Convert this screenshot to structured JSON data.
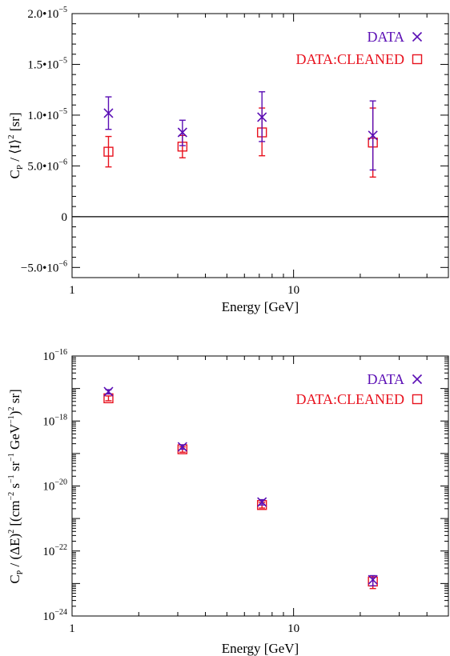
{
  "colors": {
    "data": "#5b0fb5",
    "cleaned": "#e8121e",
    "axis": "#000000"
  },
  "chart_data": [
    {
      "type": "scatter",
      "xscale": "log",
      "yscale": "linear",
      "xlim": [
        1,
        50
      ],
      "ylim": [
        -6e-06,
        2e-05
      ],
      "xticks": [
        {
          "value": 1,
          "label": "1"
        },
        {
          "value": 10,
          "label": "10"
        }
      ],
      "yticks": [
        {
          "value": 2e-05,
          "mant": "2.0•10",
          "exp": "−5"
        },
        {
          "value": 1.5e-05,
          "mant": "1.5•10",
          "exp": "−5"
        },
        {
          "value": 1e-05,
          "mant": "1.0•10",
          "exp": "−5"
        },
        {
          "value": 5e-06,
          "mant": "5.0•10",
          "exp": "−6"
        },
        {
          "value": 0,
          "mant": "0",
          "exp": ""
        },
        {
          "value": -5e-06,
          "mant": "−5.0•10",
          "exp": "−6"
        }
      ],
      "zero_line": 0,
      "xlabel": "Energy [GeV]",
      "ylabel": {
        "c": "C",
        "p": "P",
        "slash": " / ⟨I⟩",
        "two": "2",
        "unit": " [sr]"
      },
      "series": [
        {
          "name": "DATA",
          "marker": "x",
          "x": [
            1.46,
            3.15,
            7.2,
            22.8
          ],
          "y": [
            1.02e-05,
            8.3e-06,
            9.8e-06,
            8e-06
          ],
          "yerr_low": [
            8.6e-06,
            7e-06,
            7.4e-06,
            4.6e-06
          ],
          "yerr_high": [
            1.18e-05,
            9.5e-06,
            1.23e-05,
            1.14e-05
          ]
        },
        {
          "name": "DATA:CLEANED",
          "marker": "square",
          "x": [
            1.46,
            3.15,
            7.2,
            22.8
          ],
          "y": [
            6.4e-06,
            6.9e-06,
            8.3e-06,
            7.3e-06
          ],
          "yerr_low": [
            4.9e-06,
            5.8e-06,
            6e-06,
            3.9e-06
          ],
          "yerr_high": [
            7.9e-06,
            8e-06,
            1.07e-05,
            1.07e-05
          ]
        }
      ]
    },
    {
      "type": "scatter",
      "xscale": "log",
      "yscale": "log",
      "xlim": [
        1,
        50
      ],
      "ylim": [
        1e-24,
        1e-16
      ],
      "xticks": [
        {
          "value": 1,
          "label": "1"
        },
        {
          "value": 10,
          "label": "10"
        }
      ],
      "yticks": [
        {
          "value": 1e-16,
          "mant": "10",
          "exp": "−16"
        },
        {
          "value": 1e-18,
          "mant": "10",
          "exp": "−18"
        },
        {
          "value": 1e-20,
          "mant": "10",
          "exp": "−20"
        },
        {
          "value": 1e-22,
          "mant": "10",
          "exp": "−22"
        },
        {
          "value": 1e-24,
          "mant": "10",
          "exp": "−24"
        }
      ],
      "xlabel": "Energy [GeV]",
      "ylabel": {
        "c": "C",
        "p": "P",
        "a": " / (ΔE)",
        "b": "2",
        "c2": " [(cm",
        "d": "−2",
        "e": " s",
        "f": "−1",
        "g": " sr",
        "h": "−1",
        "i": " GeV",
        "j": "−1",
        "k": ")",
        "l": "2",
        "m": " sr]"
      },
      "series": [
        {
          "name": "DATA",
          "marker": "x",
          "x": [
            1.46,
            3.15,
            7.2,
            22.8
          ],
          "y": [
            8e-18,
            1.6e-19,
            3.2e-21,
            1.3e-23
          ],
          "yerr_low": [
            6.8e-18,
            1.35e-19,
            2.6e-21,
            8.5e-24
          ],
          "yerr_high": [
            9.2e-18,
            1.85e-19,
            3.8e-21,
            1.75e-23
          ]
        },
        {
          "name": "DATA:CLEANED",
          "marker": "square",
          "x": [
            1.46,
            3.15,
            7.2,
            22.8
          ],
          "y": [
            5e-18,
            1.35e-19,
            2.6e-21,
            1.15e-23
          ],
          "yerr_low": [
            4.2e-18,
            1.1e-19,
            2.1e-21,
            7e-24
          ],
          "yerr_high": [
            5.9e-18,
            1.6e-19,
            3.1e-21,
            1.6e-23
          ]
        }
      ]
    }
  ]
}
